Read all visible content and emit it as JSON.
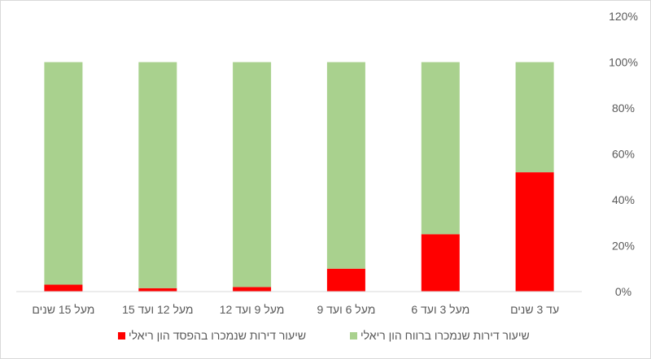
{
  "chart_data": {
    "type": "bar",
    "stacked": true,
    "categories": [
      "עד 3 שנים",
      "מעל 3 ועד 6",
      "מעל 6 ועד 9",
      "מעל 9 ועד 12",
      "מעל 12 ועד 15",
      "מעל 15 שנים"
    ],
    "series": [
      {
        "name": "שיעור דירות שנמכרו בהפסד הון ריאלי",
        "values": [
          52,
          25,
          10,
          2,
          1.5,
          3
        ],
        "color": "#ff0000"
      },
      {
        "name": "שיעור דירות שנמכרו ברווח הון ריאלי",
        "values": [
          48,
          75,
          90,
          98,
          98.5,
          97
        ],
        "color": "#a9d18e"
      }
    ],
    "yticks": [
      "0%",
      "20%",
      "40%",
      "60%",
      "80%",
      "100%",
      "120%"
    ],
    "ylim": [
      0,
      120
    ],
    "axis_side": "right",
    "category_order": "right-to-left",
    "legend_position": "bottom",
    "grid": false
  }
}
